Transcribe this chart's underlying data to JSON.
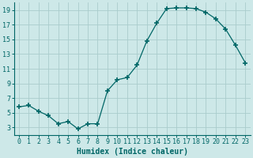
{
  "x": [
    0,
    1,
    2,
    3,
    4,
    5,
    6,
    7,
    8,
    9,
    10,
    11,
    12,
    13,
    14,
    15,
    16,
    17,
    18,
    19,
    20,
    21,
    22,
    23
  ],
  "y": [
    5.8,
    6.0,
    5.2,
    4.6,
    3.5,
    3.8,
    2.8,
    3.5,
    3.5,
    8.0,
    9.5,
    9.8,
    11.5,
    14.8,
    17.2,
    19.2,
    19.3,
    19.3,
    19.2,
    18.7,
    17.8,
    16.4,
    14.2,
    11.8
  ],
  "xlabel": "Humidex (Indice chaleur)",
  "bg_color": "#cde8e8",
  "line_color": "#006666",
  "grid_color": "#aacccc",
  "marker": "+",
  "marker_size": 4,
  "marker_lw": 1.2,
  "xlim": [
    -0.5,
    23.5
  ],
  "ylim": [
    2.0,
    20.0
  ],
  "yticks": [
    3,
    5,
    7,
    9,
    11,
    13,
    15,
    17,
    19
  ],
  "xticks": [
    0,
    1,
    2,
    3,
    4,
    5,
    6,
    7,
    8,
    9,
    10,
    11,
    12,
    13,
    14,
    15,
    16,
    17,
    18,
    19,
    20,
    21,
    22,
    23
  ],
  "xlabel_fontsize": 7,
  "tick_fontsize": 6
}
